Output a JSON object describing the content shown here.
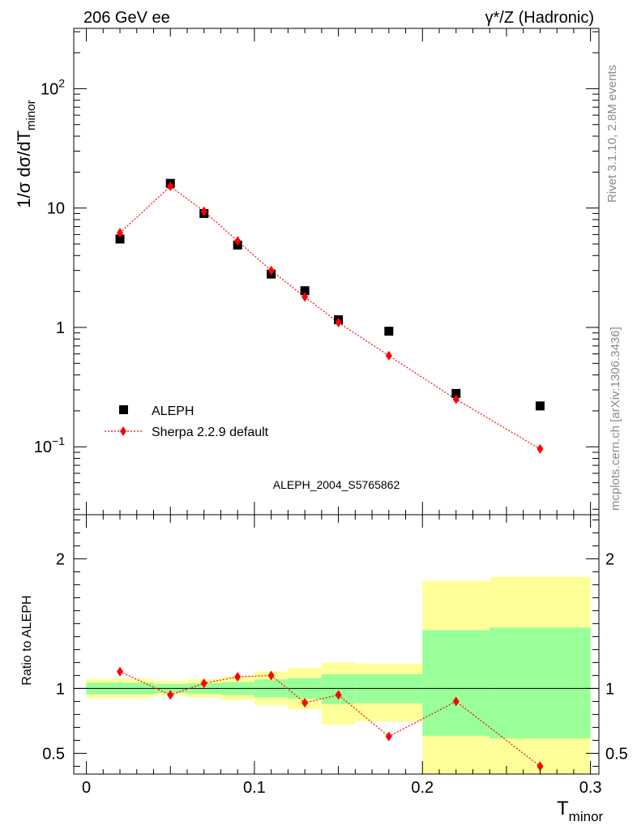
{
  "header": {
    "left": "206 GeV ee",
    "right": "γ*/Z (Hadronic)"
  },
  "side_labels": {
    "top": "Rivet 3.1.10,  2.8M events",
    "bottom": "mcplots.cern.ch [arXiv:1306.3436]"
  },
  "analysis_label": "ALEPH_2004_S5765862",
  "colors": {
    "data": "#000000",
    "mc": "#ff0000",
    "band_inner": "#99ff99",
    "band_outer": "#ffff99"
  },
  "chart_data": [
    {
      "type": "scatter",
      "panel": "main",
      "ylabel": "1/σ  dσ/dT",
      "ylabel_sub": "minor",
      "y_scale": "log",
      "ylim": [
        0.027,
        320
      ],
      "xlim": [
        -0.0075,
        0.305
      ],
      "y_ticks": [
        {
          "value": 0.1,
          "base": "10",
          "exp": "−1"
        },
        {
          "value": 1,
          "base": "1",
          "exp": ""
        },
        {
          "value": 10,
          "base": "10",
          "exp": ""
        },
        {
          "value": 100,
          "base": "10",
          "exp": "2"
        }
      ],
      "legend": {
        "placement": "bottom-left"
      },
      "series": [
        {
          "name": "ALEPH",
          "marker": "square",
          "x": [
            0.02,
            0.05,
            0.07,
            0.09,
            0.11,
            0.13,
            0.15,
            0.18,
            0.22,
            0.27
          ],
          "y": [
            5.5,
            16.1,
            9.0,
            4.9,
            2.8,
            2.03,
            1.16,
            0.93,
            0.28,
            0.22
          ]
        },
        {
          "name": "Sherpa 2.2.9 default",
          "marker": "diamond",
          "line": "dotted",
          "x": [
            0.02,
            0.05,
            0.07,
            0.09,
            0.11,
            0.13,
            0.15,
            0.18,
            0.22,
            0.27
          ],
          "y": [
            6.2,
            15.2,
            9.4,
            5.3,
            3.0,
            1.8,
            1.1,
            0.58,
            0.25,
            0.096
          ]
        }
      ]
    },
    {
      "type": "line",
      "panel": "ratio",
      "ylabel": "Ratio to ALEPH",
      "xlabel": "T",
      "xlabel_sub": "minor",
      "ylim": [
        0.34,
        2.34
      ],
      "xlim": [
        -0.0075,
        0.305
      ],
      "x_ticks": [
        "0",
        "0.1",
        "0.2",
        "0.3"
      ],
      "y_ticks": [
        "0.5",
        "1",
        "2"
      ],
      "reference_line": 1,
      "bands": [
        {
          "x0": 0.0,
          "x1": 0.04,
          "inner": [
            0.955,
            1.045
          ],
          "outer": [
            0.925,
            1.075
          ]
        },
        {
          "x0": 0.04,
          "x1": 0.06,
          "inner": [
            0.965,
            1.035
          ],
          "outer": [
            0.945,
            1.06
          ]
        },
        {
          "x0": 0.06,
          "x1": 0.08,
          "inner": [
            0.96,
            1.04
          ],
          "outer": [
            0.93,
            1.07
          ]
        },
        {
          "x0": 0.08,
          "x1": 0.1,
          "inner": [
            0.95,
            1.05
          ],
          "outer": [
            0.91,
            1.09
          ]
        },
        {
          "x0": 0.1,
          "x1": 0.12,
          "inner": [
            0.93,
            1.07
          ],
          "outer": [
            0.87,
            1.13
          ]
        },
        {
          "x0": 0.12,
          "x1": 0.14,
          "inner": [
            0.92,
            1.08
          ],
          "outer": [
            0.84,
            1.16
          ]
        },
        {
          "x0": 0.14,
          "x1": 0.16,
          "inner": [
            0.88,
            1.11
          ],
          "outer": [
            0.72,
            1.2
          ]
        },
        {
          "x0": 0.16,
          "x1": 0.2,
          "inner": [
            0.885,
            1.11
          ],
          "outer": [
            0.745,
            1.19
          ]
        },
        {
          "x0": 0.2,
          "x1": 0.24,
          "inner": [
            0.635,
            1.45
          ],
          "outer": [
            0.34,
            1.83
          ]
        },
        {
          "x0": 0.24,
          "x1": 0.3,
          "inner": [
            0.615,
            1.47
          ],
          "outer": [
            0.34,
            1.86
          ]
        }
      ],
      "series": [
        {
          "name": "Sherpa 2.2.9 default",
          "marker": "diamond",
          "line": "dotted",
          "x": [
            0.02,
            0.05,
            0.07,
            0.09,
            0.11,
            0.13,
            0.15,
            0.18,
            0.22,
            0.27
          ],
          "y": [
            1.13,
            0.95,
            1.04,
            1.09,
            1.1,
            0.89,
            0.95,
            0.63,
            0.9,
            0.4
          ]
        }
      ]
    }
  ]
}
